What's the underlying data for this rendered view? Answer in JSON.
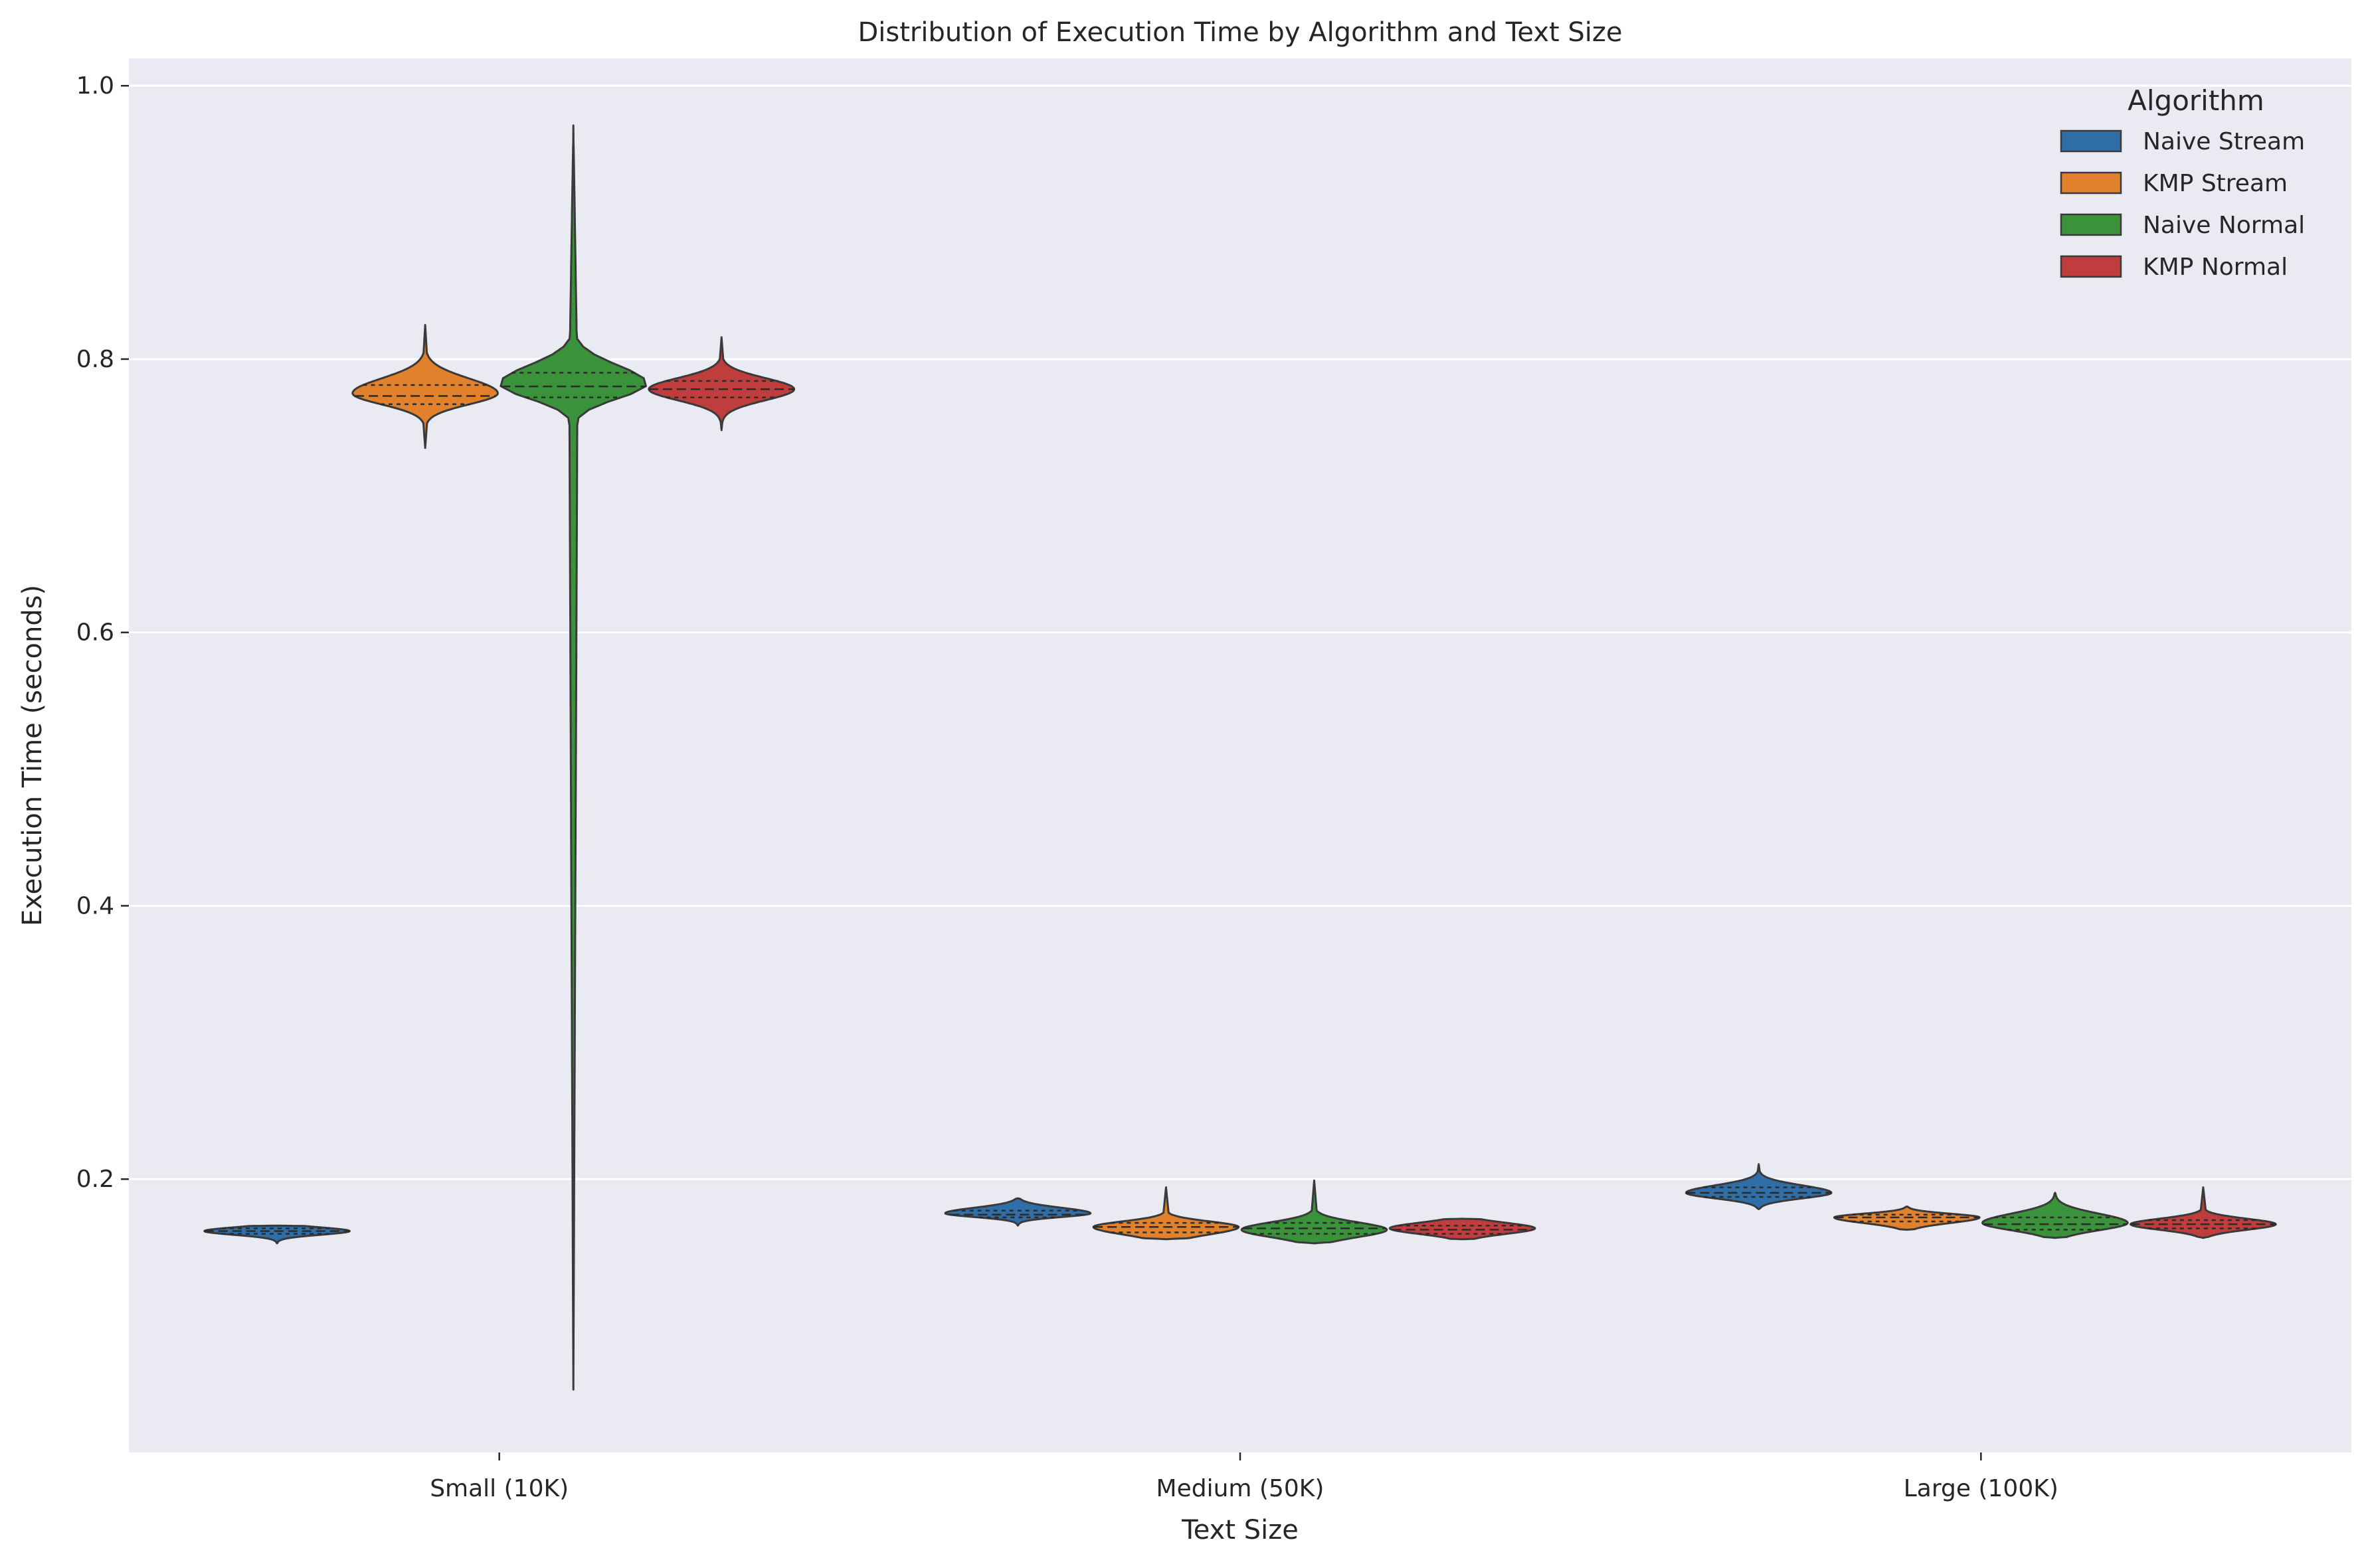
{
  "chart_data": {
    "type": "violin",
    "title": "Distribution of Execution Time by Algorithm and Text Size",
    "xlabel": "Text Size",
    "ylabel": "Execution Time (seconds)",
    "categories": [
      "Small (10K)",
      "Medium (50K)",
      "Large (100K)"
    ],
    "ylim": [
      0.0,
      1.02
    ],
    "yticks": [
      0.2,
      0.4,
      0.6,
      0.8,
      1.0
    ],
    "ytick_labels": [
      "0.2",
      "0.4",
      "0.6",
      "0.8",
      "1.0"
    ],
    "grid": true,
    "legend": {
      "title": "Algorithm",
      "placement": "top-right"
    },
    "series": [
      {
        "name": "Naive Stream",
        "color": "#2f6ea6",
        "groups": [
          {
            "min": 0.153,
            "max": 0.166,
            "q1": 0.16,
            "median": 0.162,
            "q3": 0.164,
            "mode": 0.162,
            "peak_density": 1.0
          },
          {
            "min": 0.166,
            "max": 0.186,
            "q1": 0.172,
            "median": 0.174,
            "q3": 0.177,
            "mode": 0.175,
            "peak_density": 1.0
          },
          {
            "min": 0.178,
            "max": 0.211,
            "q1": 0.187,
            "median": 0.19,
            "q3": 0.194,
            "mode": 0.19,
            "peak_density": 1.0
          }
        ]
      },
      {
        "name": "KMP Stream",
        "color": "#e1812c",
        "groups": [
          {
            "min": 0.735,
            "max": 0.825,
            "q1": 0.767,
            "median": 0.773,
            "q3": 0.781,
            "mode": 0.775,
            "peak_density": 1.0
          },
          {
            "min": 0.156,
            "max": 0.194,
            "q1": 0.161,
            "median": 0.165,
            "q3": 0.168,
            "mode": 0.165,
            "peak_density": 1.0
          },
          {
            "min": 0.163,
            "max": 0.18,
            "q1": 0.169,
            "median": 0.172,
            "q3": 0.174,
            "mode": 0.172,
            "peak_density": 1.0
          }
        ]
      },
      {
        "name": "Naive Normal",
        "color": "#3a923a",
        "groups": [
          {
            "min": 0.046,
            "max": 0.971,
            "q1": 0.772,
            "median": 0.78,
            "q3": 0.79,
            "mode": 0.782,
            "peak_density": 1.0
          },
          {
            "min": 0.153,
            "max": 0.199,
            "q1": 0.16,
            "median": 0.164,
            "q3": 0.168,
            "mode": 0.163,
            "peak_density": 1.0
          },
          {
            "min": 0.157,
            "max": 0.19,
            "q1": 0.163,
            "median": 0.167,
            "q3": 0.172,
            "mode": 0.168,
            "peak_density": 1.0
          }
        ]
      },
      {
        "name": "KMP Normal",
        "color": "#c03d3e",
        "groups": [
          {
            "min": 0.748,
            "max": 0.816,
            "q1": 0.772,
            "median": 0.778,
            "q3": 0.784,
            "mode": 0.778,
            "peak_density": 1.0
          },
          {
            "min": 0.156,
            "max": 0.171,
            "q1": 0.16,
            "median": 0.163,
            "q3": 0.166,
            "mode": 0.164,
            "peak_density": 1.0
          },
          {
            "min": 0.157,
            "max": 0.194,
            "q1": 0.164,
            "median": 0.167,
            "q3": 0.17,
            "mode": 0.167,
            "peak_density": 1.0
          }
        ]
      }
    ]
  }
}
